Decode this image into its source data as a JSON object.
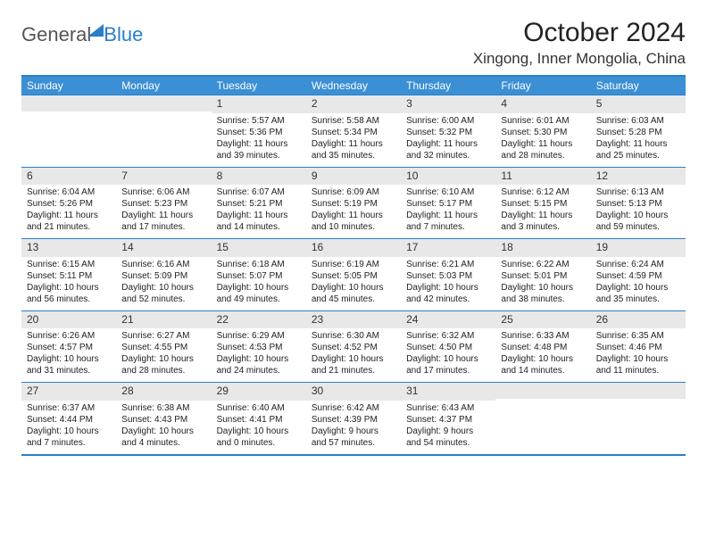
{
  "logo": {
    "part1": "General",
    "part2": "Blue"
  },
  "title": "October 2024",
  "location": "Xingong, Inner Mongolia, China",
  "headers": [
    "Sunday",
    "Monday",
    "Tuesday",
    "Wednesday",
    "Thursday",
    "Friday",
    "Saturday"
  ],
  "colors": {
    "accent": "#2a7fc9",
    "header_bg": "#3b8fd4",
    "band_bg": "#e8e8e8"
  },
  "weeks": [
    [
      null,
      null,
      {
        "n": "1",
        "sr": "5:57 AM",
        "ss": "5:36 PM",
        "dl": "11 hours and 39 minutes."
      },
      {
        "n": "2",
        "sr": "5:58 AM",
        "ss": "5:34 PM",
        "dl": "11 hours and 35 minutes."
      },
      {
        "n": "3",
        "sr": "6:00 AM",
        "ss": "5:32 PM",
        "dl": "11 hours and 32 minutes."
      },
      {
        "n": "4",
        "sr": "6:01 AM",
        "ss": "5:30 PM",
        "dl": "11 hours and 28 minutes."
      },
      {
        "n": "5",
        "sr": "6:03 AM",
        "ss": "5:28 PM",
        "dl": "11 hours and 25 minutes."
      }
    ],
    [
      {
        "n": "6",
        "sr": "6:04 AM",
        "ss": "5:26 PM",
        "dl": "11 hours and 21 minutes."
      },
      {
        "n": "7",
        "sr": "6:06 AM",
        "ss": "5:23 PM",
        "dl": "11 hours and 17 minutes."
      },
      {
        "n": "8",
        "sr": "6:07 AM",
        "ss": "5:21 PM",
        "dl": "11 hours and 14 minutes."
      },
      {
        "n": "9",
        "sr": "6:09 AM",
        "ss": "5:19 PM",
        "dl": "11 hours and 10 minutes."
      },
      {
        "n": "10",
        "sr": "6:10 AM",
        "ss": "5:17 PM",
        "dl": "11 hours and 7 minutes."
      },
      {
        "n": "11",
        "sr": "6:12 AM",
        "ss": "5:15 PM",
        "dl": "11 hours and 3 minutes."
      },
      {
        "n": "12",
        "sr": "6:13 AM",
        "ss": "5:13 PM",
        "dl": "10 hours and 59 minutes."
      }
    ],
    [
      {
        "n": "13",
        "sr": "6:15 AM",
        "ss": "5:11 PM",
        "dl": "10 hours and 56 minutes."
      },
      {
        "n": "14",
        "sr": "6:16 AM",
        "ss": "5:09 PM",
        "dl": "10 hours and 52 minutes."
      },
      {
        "n": "15",
        "sr": "6:18 AM",
        "ss": "5:07 PM",
        "dl": "10 hours and 49 minutes."
      },
      {
        "n": "16",
        "sr": "6:19 AM",
        "ss": "5:05 PM",
        "dl": "10 hours and 45 minutes."
      },
      {
        "n": "17",
        "sr": "6:21 AM",
        "ss": "5:03 PM",
        "dl": "10 hours and 42 minutes."
      },
      {
        "n": "18",
        "sr": "6:22 AM",
        "ss": "5:01 PM",
        "dl": "10 hours and 38 minutes."
      },
      {
        "n": "19",
        "sr": "6:24 AM",
        "ss": "4:59 PM",
        "dl": "10 hours and 35 minutes."
      }
    ],
    [
      {
        "n": "20",
        "sr": "6:26 AM",
        "ss": "4:57 PM",
        "dl": "10 hours and 31 minutes."
      },
      {
        "n": "21",
        "sr": "6:27 AM",
        "ss": "4:55 PM",
        "dl": "10 hours and 28 minutes."
      },
      {
        "n": "22",
        "sr": "6:29 AM",
        "ss": "4:53 PM",
        "dl": "10 hours and 24 minutes."
      },
      {
        "n": "23",
        "sr": "6:30 AM",
        "ss": "4:52 PM",
        "dl": "10 hours and 21 minutes."
      },
      {
        "n": "24",
        "sr": "6:32 AM",
        "ss": "4:50 PM",
        "dl": "10 hours and 17 minutes."
      },
      {
        "n": "25",
        "sr": "6:33 AM",
        "ss": "4:48 PM",
        "dl": "10 hours and 14 minutes."
      },
      {
        "n": "26",
        "sr": "6:35 AM",
        "ss": "4:46 PM",
        "dl": "10 hours and 11 minutes."
      }
    ],
    [
      {
        "n": "27",
        "sr": "6:37 AM",
        "ss": "4:44 PM",
        "dl": "10 hours and 7 minutes."
      },
      {
        "n": "28",
        "sr": "6:38 AM",
        "ss": "4:43 PM",
        "dl": "10 hours and 4 minutes."
      },
      {
        "n": "29",
        "sr": "6:40 AM",
        "ss": "4:41 PM",
        "dl": "10 hours and 0 minutes."
      },
      {
        "n": "30",
        "sr": "6:42 AM",
        "ss": "4:39 PM",
        "dl": "9 hours and 57 minutes."
      },
      {
        "n": "31",
        "sr": "6:43 AM",
        "ss": "4:37 PM",
        "dl": "9 hours and 54 minutes."
      },
      null,
      null
    ]
  ]
}
